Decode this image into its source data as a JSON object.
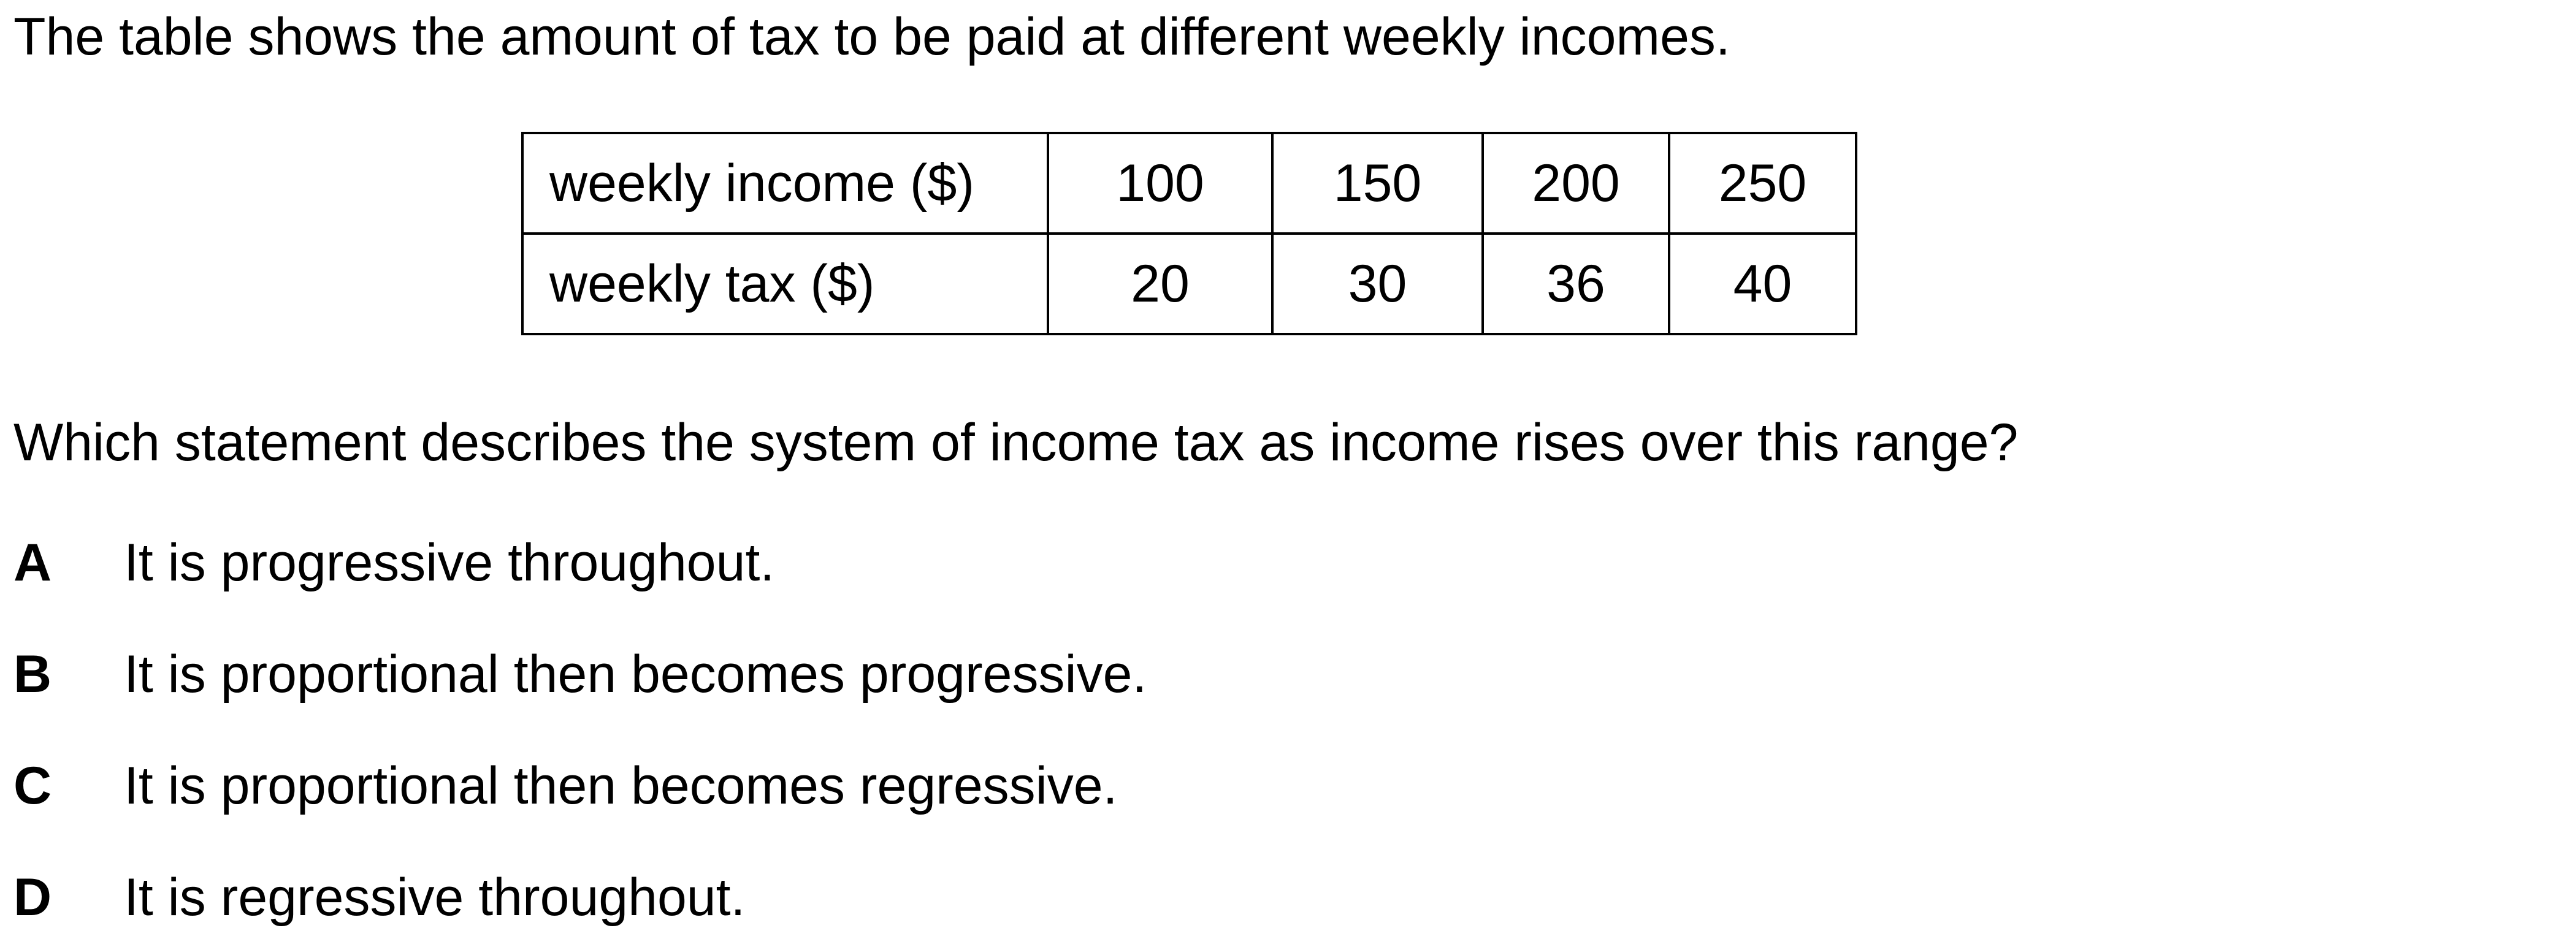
{
  "intro": "The table shows the amount of tax to be paid at different weekly incomes.",
  "table": {
    "rows": [
      {
        "label": "weekly income ($)",
        "values": [
          "100",
          "150",
          "200",
          "250"
        ]
      },
      {
        "label": "weekly tax ($)",
        "values": [
          "20",
          "30",
          "36",
          "40"
        ]
      }
    ]
  },
  "question": "Which statement describes the system of income tax as income rises over this range?",
  "options": [
    {
      "letter": "A",
      "text": "It is progressive throughout."
    },
    {
      "letter": "B",
      "text": "It is proportional then becomes progressive."
    },
    {
      "letter": "C",
      "text": "It is proportional then becomes regressive."
    },
    {
      "letter": "D",
      "text": "It is regressive throughout."
    }
  ]
}
